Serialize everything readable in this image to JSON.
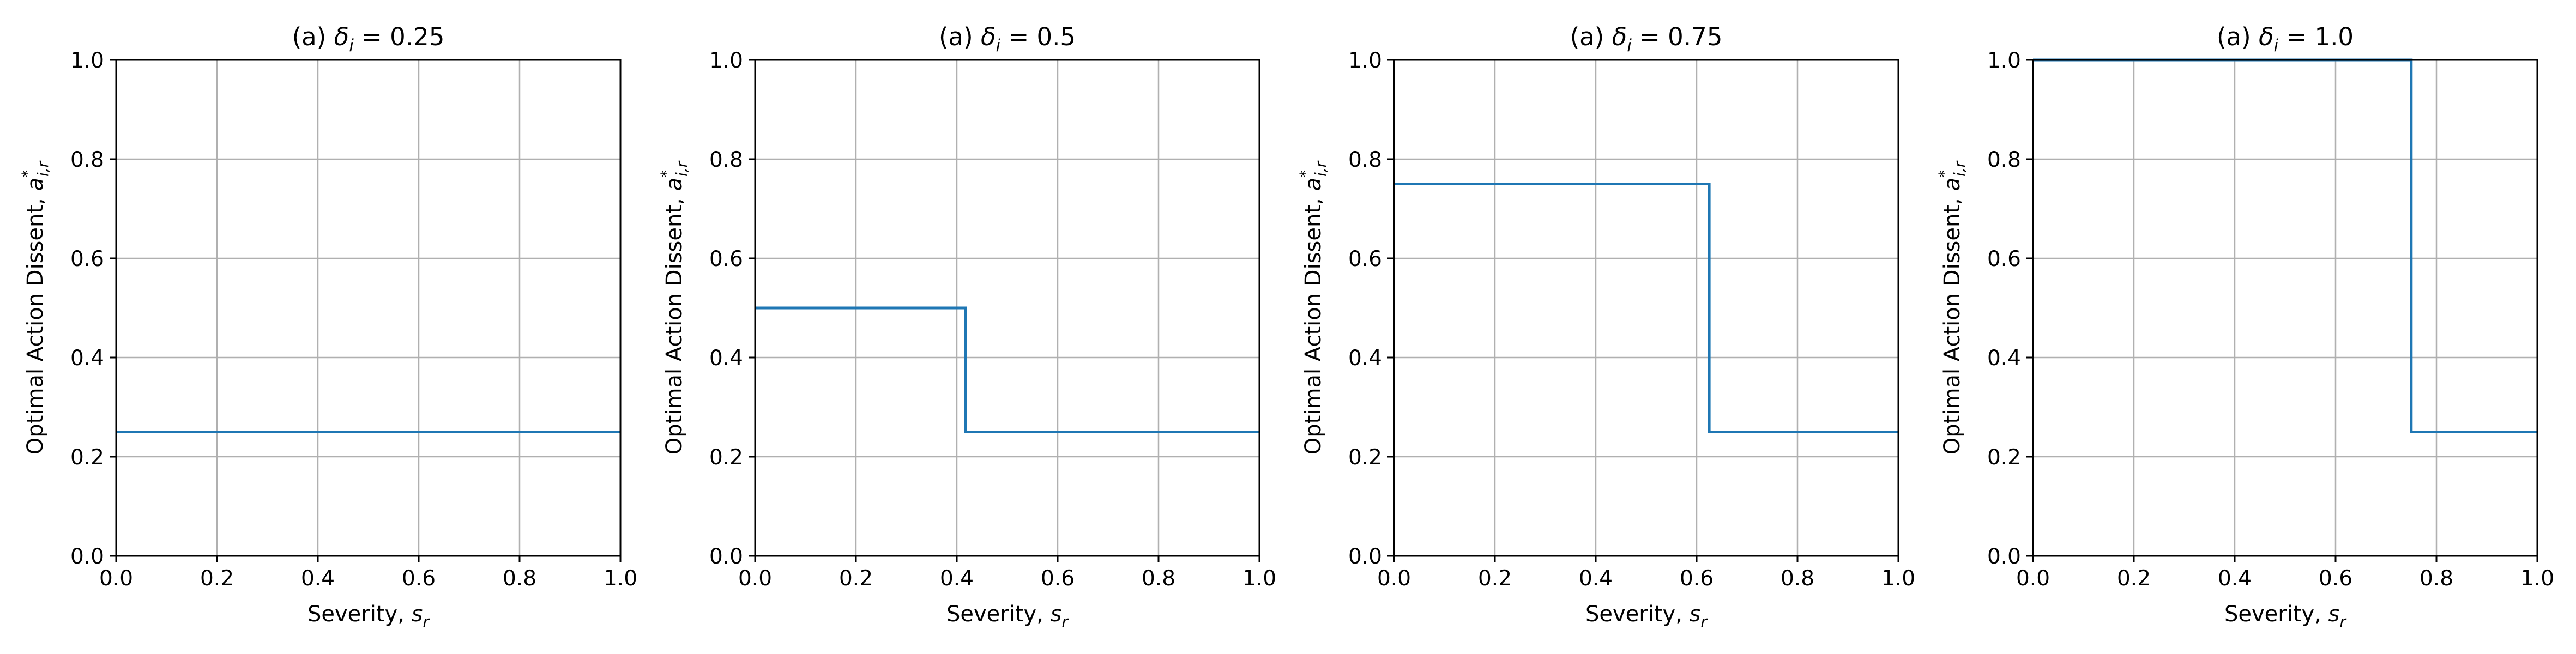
{
  "chart_data": [
    {
      "type": "line",
      "step": true,
      "title": "(a) δ_i = 0.25",
      "xlabel": "Severity, s_r",
      "ylabel": "Optimal Action Dissent, a*_{i,r}",
      "xlim": [
        0.0,
        1.0
      ],
      "ylim": [
        0.0,
        1.0
      ],
      "xticks": [
        "0.0",
        "0.2",
        "0.4",
        "0.6",
        "0.8",
        "1.0"
      ],
      "yticks": [
        "0.0",
        "0.2",
        "0.4",
        "0.6",
        "0.8",
        "1.0"
      ],
      "grid": true,
      "series": [
        {
          "color": "#1f77b4",
          "x": [
            0.0,
            1.0
          ],
          "y": [
            0.25,
            0.25
          ]
        }
      ]
    },
    {
      "type": "line",
      "step": true,
      "title": "(a) δ_i = 0.5",
      "xlabel": "Severity, s_r",
      "ylabel": "Optimal Action Dissent, a*_{i,r}",
      "xlim": [
        0.0,
        1.0
      ],
      "ylim": [
        0.0,
        1.0
      ],
      "xticks": [
        "0.0",
        "0.2",
        "0.4",
        "0.6",
        "0.8",
        "1.0"
      ],
      "yticks": [
        "0.0",
        "0.2",
        "0.4",
        "0.6",
        "0.8",
        "1.0"
      ],
      "grid": true,
      "series": [
        {
          "color": "#1f77b4",
          "x": [
            0.0,
            0.417,
            0.417,
            1.0
          ],
          "y": [
            0.5,
            0.5,
            0.25,
            0.25
          ]
        }
      ]
    },
    {
      "type": "line",
      "step": true,
      "title": "(a) δ_i = 0.75",
      "xlabel": "Severity, s_r",
      "ylabel": "Optimal Action Dissent, a*_{i,r}",
      "xlim": [
        0.0,
        1.0
      ],
      "ylim": [
        0.0,
        1.0
      ],
      "xticks": [
        "0.0",
        "0.2",
        "0.4",
        "0.6",
        "0.8",
        "1.0"
      ],
      "yticks": [
        "0.0",
        "0.2",
        "0.4",
        "0.6",
        "0.8",
        "1.0"
      ],
      "grid": true,
      "series": [
        {
          "color": "#1f77b4",
          "x": [
            0.0,
            0.625,
            0.625,
            1.0
          ],
          "y": [
            0.75,
            0.75,
            0.25,
            0.25
          ]
        }
      ]
    },
    {
      "type": "line",
      "step": true,
      "title": "(a) δ_i = 1.0",
      "xlabel": "Severity, s_r",
      "ylabel": "Optimal Action Dissent, a*_{i,r}",
      "xlim": [
        0.0,
        1.0
      ],
      "ylim": [
        0.0,
        1.0
      ],
      "xticks": [
        "0.0",
        "0.2",
        "0.4",
        "0.6",
        "0.8",
        "1.0"
      ],
      "yticks": [
        "0.0",
        "0.2",
        "0.4",
        "0.6",
        "0.8",
        "1.0"
      ],
      "grid": true,
      "series": [
        {
          "color": "#1f77b4",
          "x": [
            0.0,
            0.75,
            0.75,
            1.0
          ],
          "y": [
            1.0,
            1.0,
            0.25,
            0.25
          ]
        }
      ]
    }
  ]
}
